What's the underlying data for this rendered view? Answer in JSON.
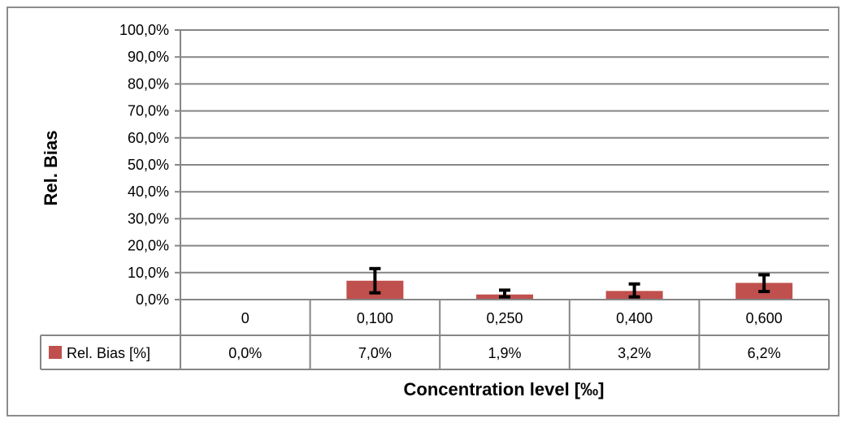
{
  "chart_data": {
    "type": "bar",
    "categories": [
      "0",
      "0,100",
      "0,250",
      "0,400",
      "0,600"
    ],
    "series": [
      {
        "name": "Rel. Bias [%]",
        "values": [
          0.0,
          7.0,
          1.9,
          3.2,
          6.2
        ],
        "error_low": [
          0.0,
          2.5,
          1.0,
          1.0,
          3.0
        ],
        "error_high": [
          0.0,
          11.5,
          3.5,
          5.8,
          9.2
        ],
        "data_table_labels": [
          "0,0%",
          "7,0%",
          "1,9%",
          "3,2%",
          "6,2%"
        ],
        "color": "#c0504d"
      }
    ],
    "y_ticks": [
      "0,0%",
      "10,0%",
      "20,0%",
      "30,0%",
      "40,0%",
      "50,0%",
      "60,0%",
      "70,0%",
      "80,0%",
      "90,0%",
      "100,0%"
    ],
    "xlabel": "Concentration level [‰]",
    "ylabel": "Rel. Bias",
    "ylim": [
      0,
      100
    ],
    "grid": true,
    "legend": "data-table"
  }
}
